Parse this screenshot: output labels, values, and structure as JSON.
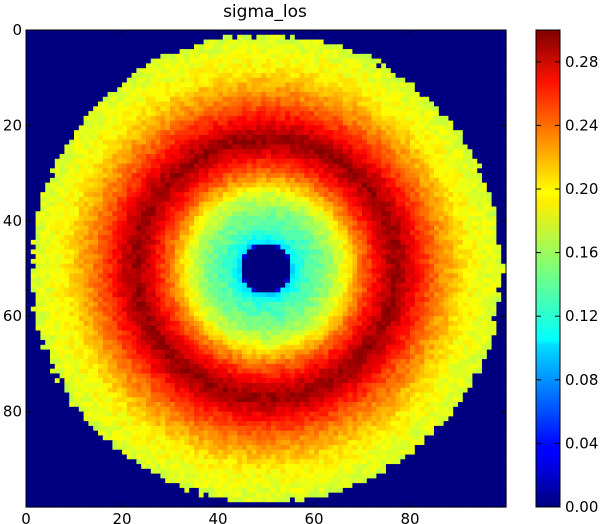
{
  "chart_data": {
    "type": "heatmap",
    "title": "sigma_los",
    "xlabel": "",
    "ylabel": "",
    "grid": false,
    "image_shape": [
      100,
      100
    ],
    "xlim": [
      0,
      100
    ],
    "ylim": [
      100,
      0
    ],
    "x_ticks": [
      0,
      20,
      40,
      60,
      80
    ],
    "y_ticks": [
      0,
      20,
      40,
      60,
      80
    ],
    "colormap": "jet",
    "colorbar": {
      "vmin": 0.0,
      "vmax": 0.3,
      "ticks": [
        "0.00",
        "0.04",
        "0.08",
        "0.12",
        "0.16",
        "0.20",
        "0.24",
        "0.28"
      ],
      "placement": "right"
    },
    "field": {
      "center": [
        50,
        50
      ],
      "outer_radius": 49,
      "outside_value": 0.0,
      "radial_profile": [
        [
          0,
          0.0
        ],
        [
          5,
          0.0
        ],
        [
          5.5,
          0.1
        ],
        [
          6.5,
          0.115
        ],
        [
          8,
          0.13
        ],
        [
          12,
          0.15
        ],
        [
          16,
          0.18
        ],
        [
          20,
          0.23
        ],
        [
          24,
          0.27
        ],
        [
          27,
          0.295
        ],
        [
          29,
          0.28
        ],
        [
          32,
          0.255
        ],
        [
          36,
          0.225
        ],
        [
          42,
          0.19
        ],
        [
          49,
          0.175
        ]
      ]
    }
  }
}
